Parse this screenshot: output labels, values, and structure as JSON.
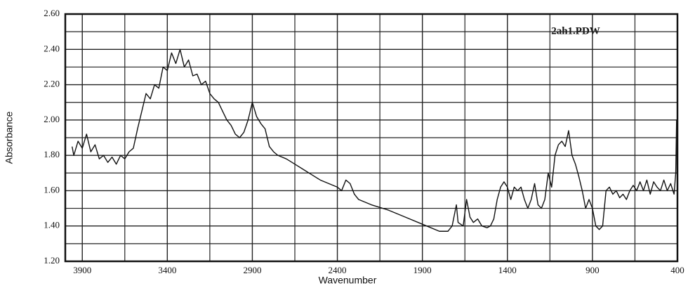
{
  "chart_data": {
    "type": "line",
    "annotation": "2ah1.PDW",
    "xlabel": "Wavenumber",
    "ylabel": "Absorbance",
    "xlim": [
      4000,
      400
    ],
    "ylim": [
      1.2,
      2.6
    ],
    "xticks": [
      3900,
      3400,
      2900,
      2400,
      1900,
      1400,
      900,
      400
    ],
    "xminorticks": [
      3650,
      3150,
      2650,
      2150,
      1650,
      1150,
      650
    ],
    "yticks": [
      {
        "value": 1.2,
        "label": "1.20"
      },
      {
        "value": 1.4,
        "label": "1.40"
      },
      {
        "value": 1.6,
        "label": "1.60"
      },
      {
        "value": 1.8,
        "label": "1.80"
      },
      {
        "value": 2.0,
        "label": "2.00"
      },
      {
        "value": 2.2,
        "label": "2.20"
      },
      {
        "value": 2.4,
        "label": "2.40"
      },
      {
        "value": 2.6,
        "label": "2.60"
      }
    ],
    "yminorticks": [
      1.3,
      1.5,
      1.7,
      1.9,
      2.1,
      2.3,
      2.5
    ],
    "grid": true,
    "color": "#111111",
    "x": [
      3960,
      3950,
      3925,
      3900,
      3875,
      3850,
      3825,
      3800,
      3775,
      3750,
      3725,
      3700,
      3675,
      3650,
      3625,
      3600,
      3575,
      3550,
      3525,
      3500,
      3475,
      3450,
      3425,
      3400,
      3375,
      3350,
      3325,
      3300,
      3275,
      3250,
      3225,
      3200,
      3175,
      3150,
      3125,
      3100,
      3075,
      3050,
      3025,
      3000,
      2975,
      2950,
      2925,
      2900,
      2875,
      2850,
      2825,
      2800,
      2775,
      2750,
      2700,
      2650,
      2600,
      2550,
      2500,
      2450,
      2400,
      2375,
      2350,
      2325,
      2300,
      2275,
      2200,
      2100,
      2000,
      1900,
      1800,
      1750,
      1725,
      1700,
      1690,
      1660,
      1640,
      1620,
      1600,
      1575,
      1550,
      1520,
      1500,
      1480,
      1460,
      1440,
      1420,
      1400,
      1380,
      1360,
      1340,
      1320,
      1300,
      1280,
      1260,
      1240,
      1220,
      1200,
      1180,
      1160,
      1140,
      1120,
      1100,
      1080,
      1060,
      1040,
      1020,
      1000,
      980,
      960,
      940,
      920,
      900,
      880,
      860,
      840,
      820,
      800,
      780,
      760,
      740,
      720,
      700,
      680,
      660,
      640,
      620,
      600,
      580,
      560,
      540,
      520,
      500,
      480,
      460,
      440,
      420,
      410,
      405,
      400
    ],
    "values": [
      1.85,
      1.8,
      1.88,
      1.84,
      1.92,
      1.82,
      1.86,
      1.78,
      1.8,
      1.76,
      1.79,
      1.75,
      1.8,
      1.78,
      1.82,
      1.84,
      1.95,
      2.05,
      2.15,
      2.12,
      2.2,
      2.18,
      2.3,
      2.28,
      2.38,
      2.32,
      2.4,
      2.3,
      2.34,
      2.25,
      2.26,
      2.2,
      2.22,
      2.15,
      2.12,
      2.1,
      2.05,
      2.0,
      1.97,
      1.92,
      1.9,
      1.93,
      2.0,
      2.1,
      2.02,
      1.98,
      1.95,
      1.85,
      1.82,
      1.8,
      1.78,
      1.75,
      1.72,
      1.69,
      1.66,
      1.64,
      1.62,
      1.6,
      1.66,
      1.64,
      1.58,
      1.55,
      1.52,
      1.49,
      1.45,
      1.41,
      1.37,
      1.37,
      1.4,
      1.52,
      1.42,
      1.4,
      1.55,
      1.45,
      1.42,
      1.44,
      1.4,
      1.39,
      1.4,
      1.44,
      1.55,
      1.62,
      1.65,
      1.62,
      1.55,
      1.62,
      1.6,
      1.62,
      1.55,
      1.5,
      1.55,
      1.64,
      1.52,
      1.5,
      1.55,
      1.7,
      1.62,
      1.8,
      1.86,
      1.88,
      1.85,
      1.94,
      1.8,
      1.75,
      1.68,
      1.6,
      1.5,
      1.55,
      1.5,
      1.4,
      1.38,
      1.4,
      1.6,
      1.62,
      1.58,
      1.6,
      1.56,
      1.58,
      1.55,
      1.6,
      1.63,
      1.6,
      1.65,
      1.6,
      1.66,
      1.58,
      1.65,
      1.62,
      1.6,
      1.66,
      1.6,
      1.64,
      1.58,
      1.7,
      2.0,
      1.6
    ]
  }
}
